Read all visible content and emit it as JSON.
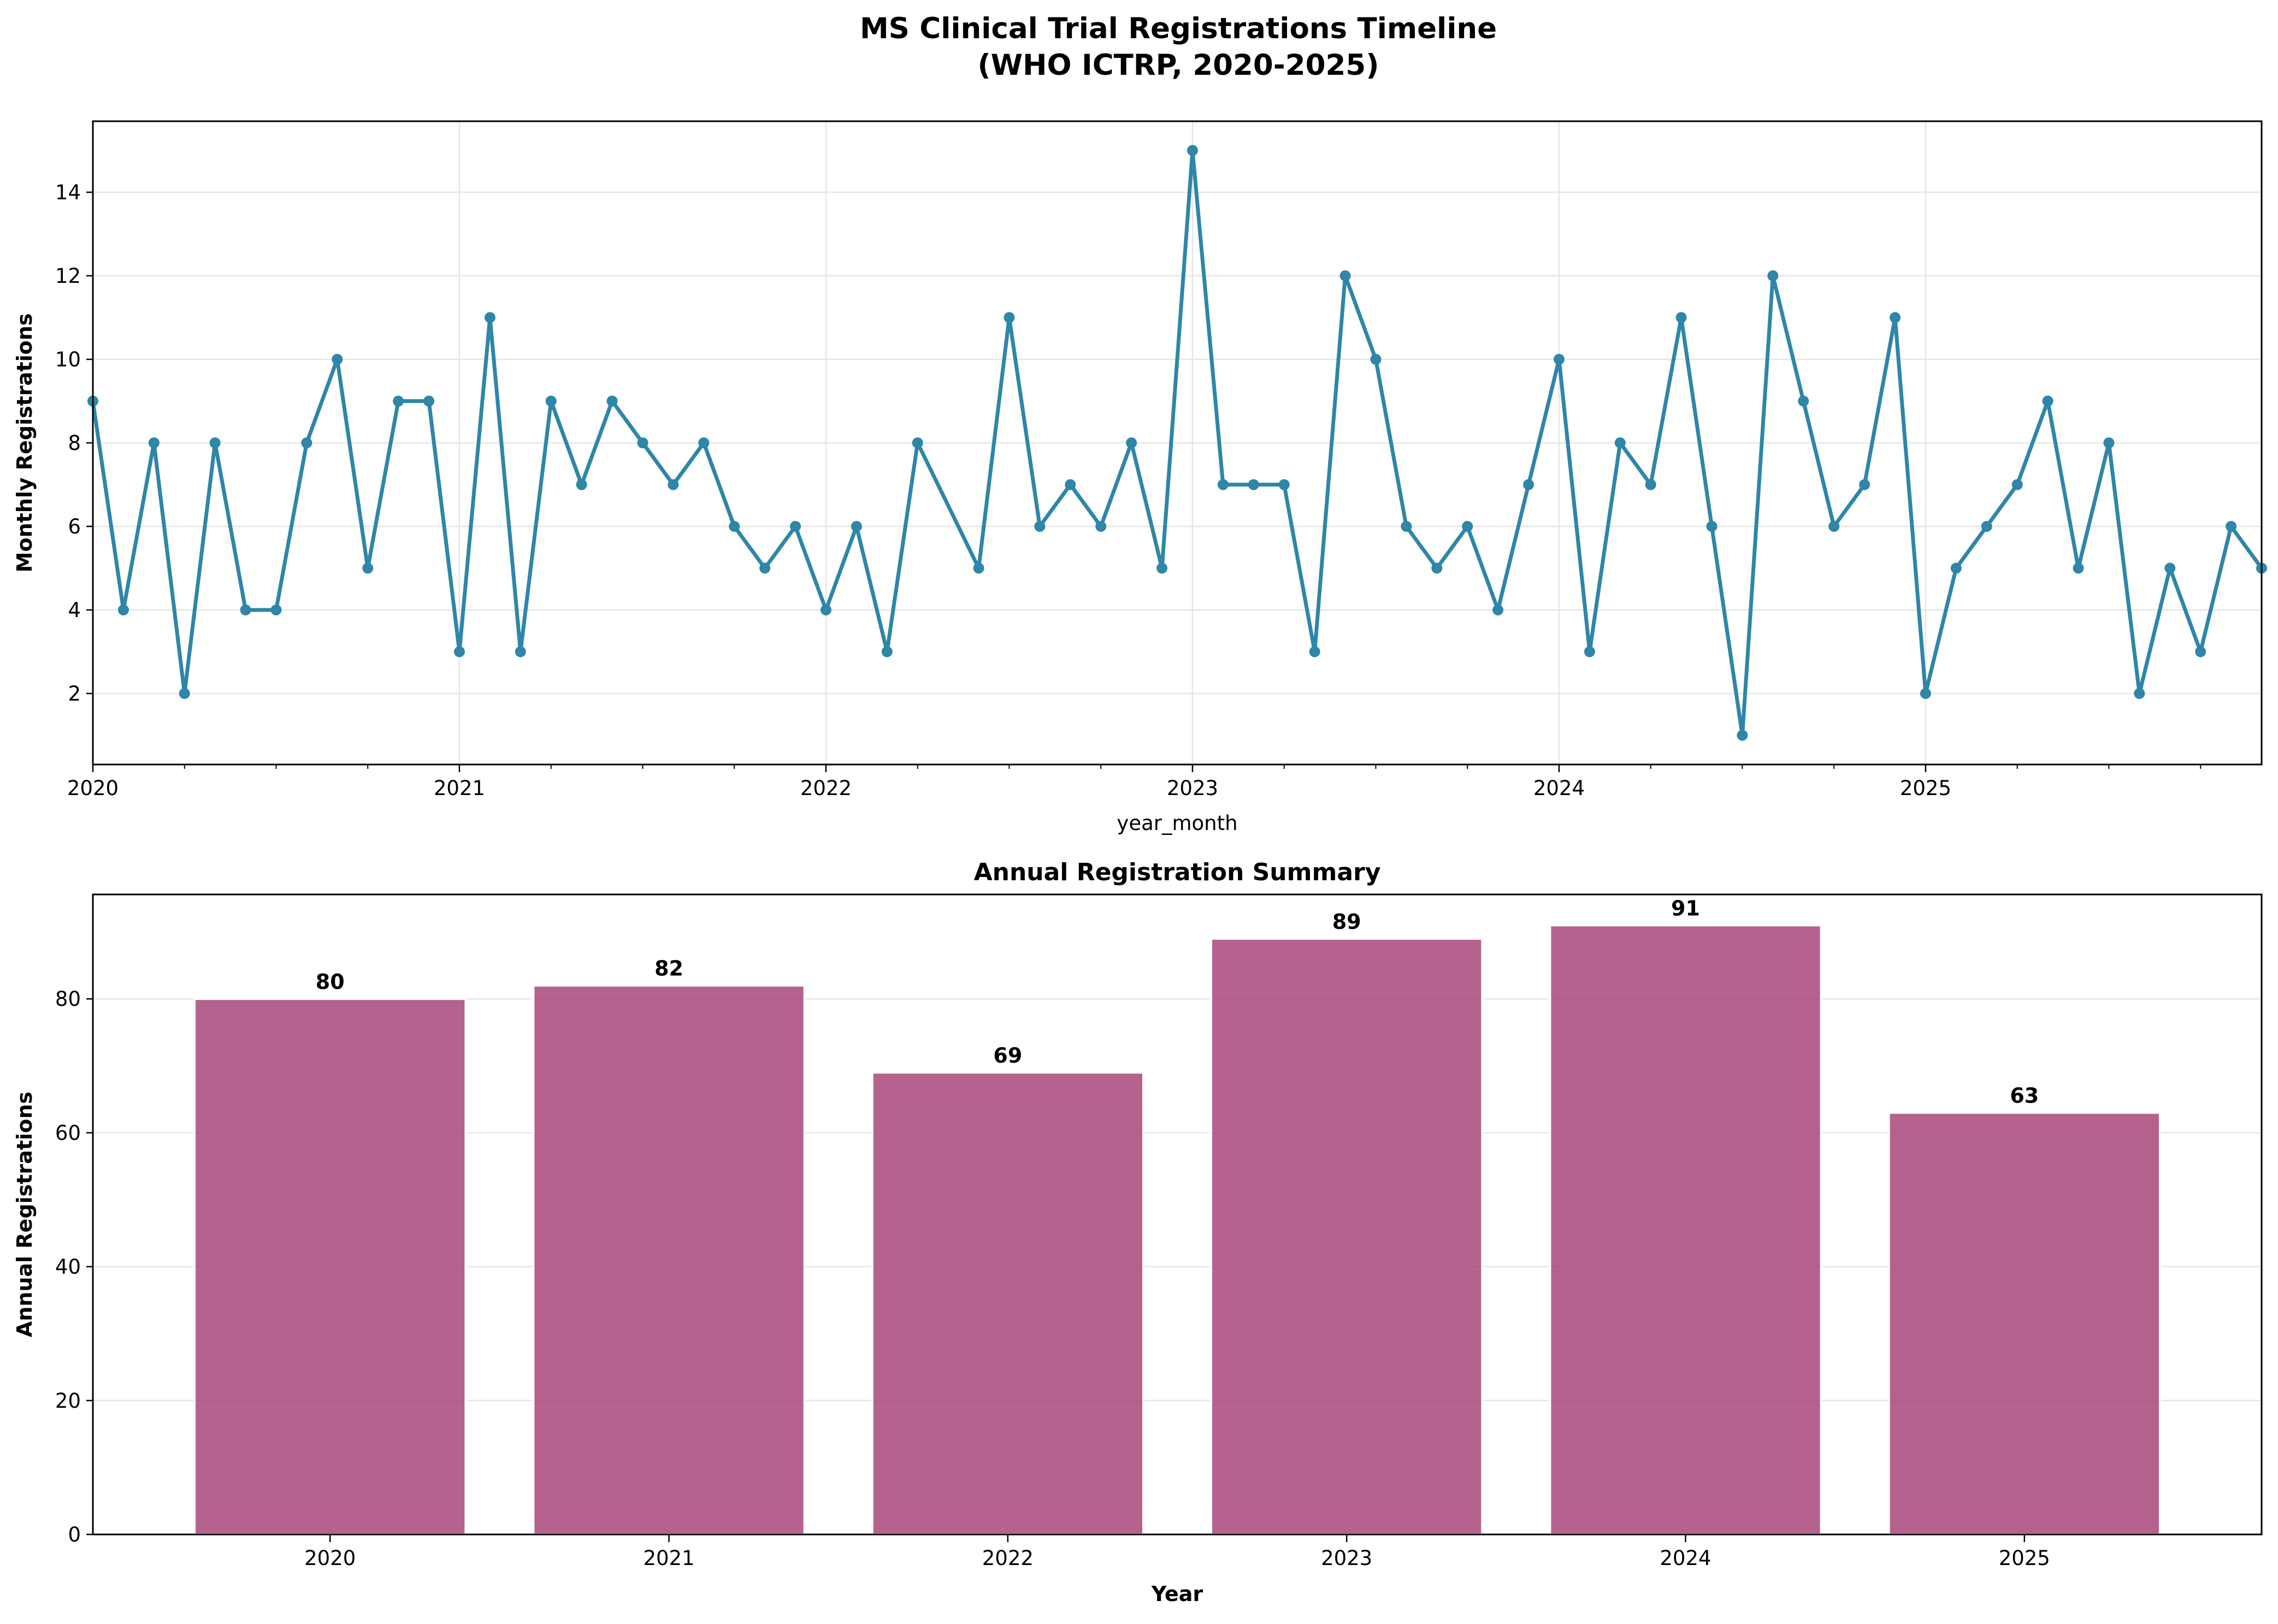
{
  "figure": {
    "title_line1": "MS Clinical Trial Registrations Timeline",
    "title_line2": "(WHO ICTRP, 2020-2025)"
  },
  "colors": {
    "line": "#2e86a8",
    "bar_fill": "#a23b72",
    "bar_edge": "#ffffff",
    "grid": "#e6e6e6",
    "text": "#000000"
  },
  "chart_data": [
    {
      "type": "line",
      "title": "",
      "xlabel": "year_month",
      "ylabel": "Monthly Registrations",
      "x_tick_labels": [
        "2020",
        "2021",
        "2022",
        "2023",
        "2024",
        "2025"
      ],
      "y_ticks": [
        2,
        4,
        6,
        8,
        10,
        12,
        14
      ],
      "ylim": [
        0.3,
        15.7
      ],
      "xlim": [
        "2020-01",
        "2025-12"
      ],
      "grid": true,
      "series": [
        {
          "points": [
            [
              "2020-01",
              9
            ],
            [
              "2020-02",
              4
            ],
            [
              "2020-03",
              8
            ],
            [
              "2020-04",
              2
            ],
            [
              "2020-05",
              8
            ],
            [
              "2020-06",
              4
            ],
            [
              "2020-07",
              4
            ],
            [
              "2020-08",
              8
            ],
            [
              "2020-09",
              10
            ],
            [
              "2020-10",
              5
            ],
            [
              "2020-11",
              9
            ],
            [
              "2020-12",
              9
            ],
            [
              "2021-01",
              3
            ],
            [
              "2021-02",
              11
            ],
            [
              "2021-03",
              3
            ],
            [
              "2021-04",
              9
            ],
            [
              "2021-05",
              7
            ],
            [
              "2021-06",
              9
            ],
            [
              "2021-07",
              8
            ],
            [
              "2021-08",
              7
            ],
            [
              "2021-09",
              8
            ],
            [
              "2021-10",
              6
            ],
            [
              "2021-11",
              5
            ],
            [
              "2021-12",
              6
            ],
            [
              "2022-01",
              4
            ],
            [
              "2022-02",
              6
            ],
            [
              "2022-03",
              3
            ],
            [
              "2022-04",
              8
            ],
            [
              "2022-06",
              5
            ],
            [
              "2022-07",
              11
            ],
            [
              "2022-08",
              6
            ],
            [
              "2022-09",
              7
            ],
            [
              "2022-10",
              6
            ],
            [
              "2022-11",
              8
            ],
            [
              "2022-12",
              5
            ],
            [
              "2023-01",
              15
            ],
            [
              "2023-02",
              7
            ],
            [
              "2023-03",
              7
            ],
            [
              "2023-04",
              7
            ],
            [
              "2023-05",
              3
            ],
            [
              "2023-06",
              12
            ],
            [
              "2023-07",
              10
            ],
            [
              "2023-08",
              6
            ],
            [
              "2023-09",
              5
            ],
            [
              "2023-10",
              6
            ],
            [
              "2023-11",
              4
            ],
            [
              "2023-12",
              7
            ],
            [
              "2024-01",
              10
            ],
            [
              "2024-02",
              3
            ],
            [
              "2024-03",
              8
            ],
            [
              "2024-04",
              7
            ],
            [
              "2024-05",
              11
            ],
            [
              "2024-06",
              6
            ],
            [
              "2024-07",
              1
            ],
            [
              "2024-08",
              12
            ],
            [
              "2024-09",
              9
            ],
            [
              "2024-10",
              6
            ],
            [
              "2024-11",
              7
            ],
            [
              "2024-12",
              11
            ],
            [
              "2025-01",
              2
            ],
            [
              "2025-02",
              5
            ],
            [
              "2025-03",
              6
            ],
            [
              "2025-04",
              7
            ],
            [
              "2025-05",
              9
            ],
            [
              "2025-06",
              5
            ],
            [
              "2025-07",
              8
            ],
            [
              "2025-08",
              2
            ],
            [
              "2025-09",
              5
            ],
            [
              "2025-10",
              3
            ],
            [
              "2025-11",
              6
            ],
            [
              "2025-12",
              5
            ]
          ]
        }
      ]
    },
    {
      "type": "bar",
      "title": "Annual Registration Summary",
      "xlabel": "Year",
      "ylabel": "Annual Registrations",
      "categories": [
        "2020",
        "2021",
        "2022",
        "2023",
        "2024",
        "2025"
      ],
      "values": [
        80,
        82,
        69,
        89,
        91,
        63
      ],
      "data_labels": [
        "80",
        "82",
        "69",
        "89",
        "91",
        "63"
      ],
      "y_ticks": [
        0,
        20,
        40,
        60,
        80
      ],
      "ylim": [
        0,
        95.6
      ],
      "grid": true
    }
  ]
}
